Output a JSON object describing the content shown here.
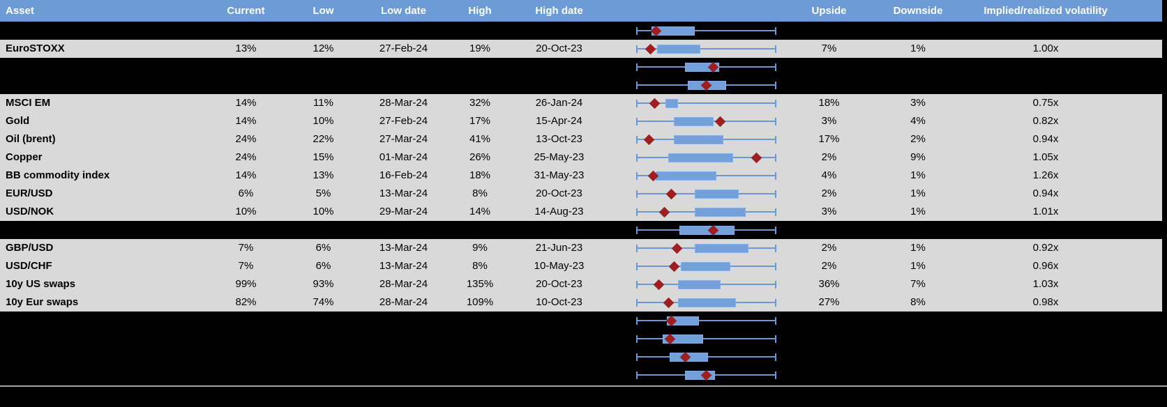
{
  "header": {
    "asset": "Asset",
    "current": "Current",
    "low": "Low",
    "low_date": "Low date",
    "high": "High",
    "high_date": "High date",
    "chart": "",
    "upside": "Upside",
    "downside": "Downside",
    "implied": "Implied/realized volatility"
  },
  "colors": {
    "header_bg": "#6C9BD5",
    "header_text": "#FFFFFF",
    "row_bg": "#D9D9D9",
    "hidden_row_bg": "#000000",
    "box_fill": "#73A0D8",
    "box_border": "#8AAEE0",
    "whisker": "#6B98D3",
    "marker_red": "#A01D20",
    "divider": "#A6A6A6",
    "text": "#000000"
  },
  "chart_data": {
    "type": "boxplot",
    "title": "",
    "columns": [
      "Asset",
      "Current",
      "Low",
      "Low date",
      "High",
      "High date",
      "Upside",
      "Downside",
      "Implied/realized volatility"
    ],
    "legend_position": "none",
    "plot_axis_range": [
      0,
      1
    ],
    "rows": [
      {
        "hidden": true,
        "asset": "",
        "current": "",
        "low": "",
        "low_date": "",
        "high": "",
        "high_date": "",
        "upside": "",
        "downside": "",
        "implied_realized": "",
        "plot": {
          "whisker": [
            0,
            1
          ],
          "box": [
            0.11,
            0.42
          ],
          "marker": 0.14
        }
      },
      {
        "hidden": false,
        "asset": "EuroSTOXX",
        "current": "13%",
        "low": "12%",
        "low_date": "27-Feb-24",
        "high": "19%",
        "high_date": "20-Oct-23",
        "upside": "7%",
        "downside": "1%",
        "implied_realized": "1.00x",
        "plot": {
          "whisker": [
            0,
            1
          ],
          "box": [
            0.15,
            0.46
          ],
          "marker": 0.1
        }
      },
      {
        "hidden": true,
        "asset": "",
        "current": "",
        "low": "",
        "low_date": "",
        "high": "",
        "high_date": "",
        "upside": "",
        "downside": "",
        "implied_realized": "",
        "plot": {
          "whisker": [
            0,
            1
          ],
          "box": [
            0.35,
            0.59
          ],
          "marker": 0.55
        }
      },
      {
        "hidden": true,
        "asset": "",
        "current": "",
        "low": "",
        "low_date": "",
        "high": "",
        "high_date": "",
        "upside": "",
        "downside": "",
        "implied_realized": "",
        "plot": {
          "whisker": [
            0,
            1
          ],
          "box": [
            0.37,
            0.64
          ],
          "marker": 0.5
        }
      },
      {
        "hidden": false,
        "asset": "MSCI EM",
        "current": "14%",
        "low": "11%",
        "low_date": "28-Mar-24",
        "high": "32%",
        "high_date": "26-Jan-24",
        "upside": "18%",
        "downside": "3%",
        "implied_realized": "0.75x",
        "plot": {
          "whisker": [
            0,
            1
          ],
          "box": [
            0.21,
            0.3
          ],
          "marker": 0.13
        }
      },
      {
        "hidden": false,
        "asset": "Gold",
        "current": "14%",
        "low": "10%",
        "low_date": "27-Feb-24",
        "high": "17%",
        "high_date": "15-Apr-24",
        "upside": "3%",
        "downside": "4%",
        "implied_realized": "0.82x",
        "plot": {
          "whisker": [
            0,
            1
          ],
          "box": [
            0.27,
            0.55
          ],
          "marker": 0.6
        }
      },
      {
        "hidden": false,
        "asset": "Oil (brent)",
        "current": "24%",
        "low": "22%",
        "low_date": "27-Mar-24",
        "high": "41%",
        "high_date": "13-Oct-23",
        "upside": "17%",
        "downside": "2%",
        "implied_realized": "0.94x",
        "plot": {
          "whisker": [
            0,
            1
          ],
          "box": [
            0.27,
            0.62
          ],
          "marker": 0.09
        }
      },
      {
        "hidden": false,
        "asset": "Copper",
        "current": "24%",
        "low": "15%",
        "low_date": "01-Mar-24",
        "high": "26%",
        "high_date": "25-May-23",
        "upside": "2%",
        "downside": "9%",
        "implied_realized": "1.05x",
        "plot": {
          "whisker": [
            0,
            1
          ],
          "box": [
            0.23,
            0.69
          ],
          "marker": 0.86
        }
      },
      {
        "hidden": false,
        "asset": "BB commodity index",
        "current": "14%",
        "low": "13%",
        "low_date": "16-Feb-24",
        "high": "18%",
        "high_date": "31-May-23",
        "upside": "4%",
        "downside": "1%",
        "implied_realized": "1.26x",
        "plot": {
          "whisker": [
            0,
            1
          ],
          "box": [
            0.14,
            0.57
          ],
          "marker": 0.12
        }
      },
      {
        "hidden": false,
        "asset": "EUR/USD",
        "current": "6%",
        "low": "5%",
        "low_date": "13-Mar-24",
        "high": "8%",
        "high_date": "20-Oct-23",
        "upside": "2%",
        "downside": "1%",
        "implied_realized": "0.94x",
        "plot": {
          "whisker": [
            0,
            1
          ],
          "box": [
            0.42,
            0.73
          ],
          "marker": 0.25
        }
      },
      {
        "hidden": false,
        "asset": "USD/NOK",
        "current": "10%",
        "low": "10%",
        "low_date": "29-Mar-24",
        "high": "14%",
        "high_date": "14-Aug-23",
        "upside": "3%",
        "downside": "1%",
        "implied_realized": "1.01x",
        "plot": {
          "whisker": [
            0,
            1
          ],
          "box": [
            0.42,
            0.78
          ],
          "marker": 0.2
        }
      },
      {
        "hidden": true,
        "asset": "",
        "current": "",
        "low": "",
        "low_date": "",
        "high": "",
        "high_date": "",
        "upside": "",
        "downside": "",
        "implied_realized": "",
        "plot": {
          "whisker": [
            0,
            1
          ],
          "box": [
            0.31,
            0.7
          ],
          "marker": 0.55
        }
      },
      {
        "hidden": false,
        "asset": "GBP/USD",
        "current": "7%",
        "low": "6%",
        "low_date": "13-Mar-24",
        "high": "9%",
        "high_date": "21-Jun-23",
        "upside": "2%",
        "downside": "1%",
        "implied_realized": "0.92x",
        "plot": {
          "whisker": [
            0,
            1
          ],
          "box": [
            0.42,
            0.8
          ],
          "marker": 0.29
        }
      },
      {
        "hidden": false,
        "asset": "USD/CHF",
        "current": "7%",
        "low": "6%",
        "low_date": "13-Mar-24",
        "high": "8%",
        "high_date": "10-May-23",
        "upside": "2%",
        "downside": "1%",
        "implied_realized": "0.96x",
        "plot": {
          "whisker": [
            0,
            1
          ],
          "box": [
            0.32,
            0.67
          ],
          "marker": 0.27
        }
      },
      {
        "hidden": false,
        "asset": "10y US swaps",
        "current": "99%",
        "low": "93%",
        "low_date": "28-Mar-24",
        "high": "135%",
        "high_date": "20-Oct-23",
        "upside": "36%",
        "downside": "7%",
        "implied_realized": "1.03x",
        "plot": {
          "whisker": [
            0,
            1
          ],
          "box": [
            0.3,
            0.6
          ],
          "marker": 0.16
        }
      },
      {
        "hidden": false,
        "asset": "10y Eur swaps",
        "current": "82%",
        "low": "74%",
        "low_date": "28-Mar-24",
        "high": "109%",
        "high_date": "10-Oct-23",
        "upside": "27%",
        "downside": "8%",
        "implied_realized": "0.98x",
        "plot": {
          "whisker": [
            0,
            1
          ],
          "box": [
            0.3,
            0.71
          ],
          "marker": 0.23
        }
      },
      {
        "hidden": true,
        "asset": "",
        "current": "",
        "low": "",
        "low_date": "",
        "high": "",
        "high_date": "",
        "upside": "",
        "downside": "",
        "implied_realized": "",
        "plot": {
          "whisker": [
            0,
            1
          ],
          "box": [
            0.22,
            0.45
          ],
          "marker": 0.25
        }
      },
      {
        "hidden": true,
        "asset": "",
        "current": "",
        "low": "",
        "low_date": "",
        "high": "",
        "high_date": "",
        "upside": "",
        "downside": "",
        "implied_realized": "",
        "plot": {
          "whisker": [
            0,
            1
          ],
          "box": [
            0.19,
            0.48
          ],
          "marker": 0.24
        }
      },
      {
        "hidden": true,
        "asset": "",
        "current": "",
        "low": "",
        "low_date": "",
        "high": "",
        "high_date": "",
        "upside": "",
        "downside": "",
        "implied_realized": "",
        "plot": {
          "whisker": [
            0,
            1
          ],
          "box": [
            0.24,
            0.51
          ],
          "marker": 0.35
        }
      },
      {
        "hidden": true,
        "asset": "",
        "current": "",
        "low": "",
        "low_date": "",
        "high": "",
        "high_date": "",
        "upside": "",
        "downside": "",
        "implied_realized": "",
        "plot": {
          "whisker": [
            0,
            1
          ],
          "box": [
            0.35,
            0.56
          ],
          "marker": 0.5
        }
      }
    ]
  }
}
